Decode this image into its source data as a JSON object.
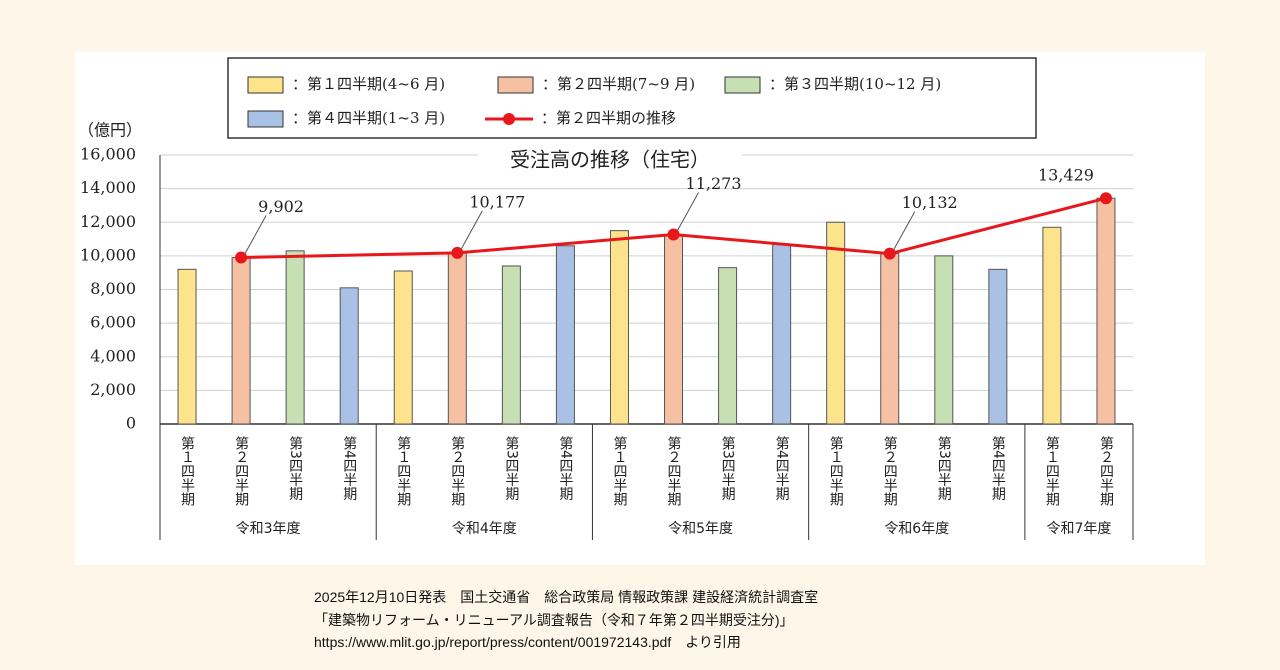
{
  "chart_data": {
    "type": "bar",
    "title": "受注高の推移（住宅）",
    "y_unit": "（億円）",
    "categories": [
      "第１四半期",
      "第２四半期",
      "第3四半期",
      "第4四半期",
      "第１四半期",
      "第２四半期",
      "第3四半期",
      "第4四半期",
      "第１四半期",
      "第２四半期",
      "第3四半期",
      "第4四半期",
      "第１四半期",
      "第２四半期",
      "第3四半期",
      "第4四半期",
      "第１四半期",
      "第２四半期"
    ],
    "groups": [
      {
        "name": "令和3年度",
        "size": 4
      },
      {
        "name": "令和4年度",
        "size": 4
      },
      {
        "name": "令和5年度",
        "size": 4
      },
      {
        "name": "令和6年度",
        "size": 4
      },
      {
        "name": "令和7年度",
        "size": 2
      }
    ],
    "series": [
      {
        "name": "：第１四半期(4~6 月)",
        "color": "#fde48c",
        "type": "bar",
        "values": [
          9200,
          null,
          null,
          null,
          9100,
          null,
          null,
          null,
          11500,
          null,
          null,
          null,
          12000,
          null,
          null,
          null,
          11700,
          null
        ]
      },
      {
        "name": "：第２四半期(7~9 月)",
        "color": "#f6c0a2",
        "type": "bar",
        "values": [
          null,
          9902,
          null,
          null,
          null,
          10177,
          null,
          null,
          null,
          11273,
          null,
          null,
          null,
          10132,
          null,
          null,
          null,
          13429
        ]
      },
      {
        "name": "：第３四半期(10~12 月)",
        "color": "#c6dfb3",
        "type": "bar",
        "values": [
          null,
          null,
          10300,
          null,
          null,
          null,
          9400,
          null,
          null,
          null,
          9300,
          null,
          null,
          null,
          10000,
          null,
          null,
          null
        ]
      },
      {
        "name": "：第４四半期(1~3 月)",
        "color": "#a9c1e4",
        "type": "bar",
        "values": [
          null,
          null,
          null,
          8100,
          null,
          null,
          null,
          10600,
          null,
          null,
          null,
          10700,
          null,
          null,
          null,
          9200,
          null,
          null
        ]
      },
      {
        "name": "：第２四半期の推移",
        "color": "#e8171c",
        "type": "line",
        "connect_gaps": true,
        "values": [
          null,
          9902,
          null,
          null,
          null,
          10177,
          null,
          null,
          null,
          11273,
          null,
          null,
          null,
          10132,
          null,
          null,
          null,
          13429
        ],
        "value_labels": [
          null,
          "9,902",
          null,
          null,
          null,
          "10,177",
          null,
          null,
          null,
          "11,273",
          null,
          null,
          null,
          "10,132",
          null,
          null,
          null,
          "13,429"
        ]
      }
    ],
    "ylim": [
      0,
      16000
    ],
    "yticks": [
      0,
      {
        "value": 2000,
        "label": "2,000"
      },
      {
        "value": 4000,
        "label": "4,000"
      },
      {
        "value": 6000,
        "label": "6,000"
      },
      {
        "value": 8000,
        "label": "8,000"
      },
      {
        "value": 10000,
        "label": "10,000"
      },
      {
        "value": 12000,
        "label": "12,000"
      },
      {
        "value": 14000,
        "label": "14,000"
      },
      {
        "value": 16000,
        "label": "16,000"
      }
    ],
    "grid": true
  },
  "caption": {
    "lines": [
      "2025年12月10日発表　国土交通省　総合政策局 情報政策課 建設経済統計調査室",
      "「建築物リフォーム・リニューアル調査報告（令和７年第２四半期受注分)」",
      "https://www.mlit.go.jp/report/press/content/001972143.pdf　より引用"
    ]
  }
}
